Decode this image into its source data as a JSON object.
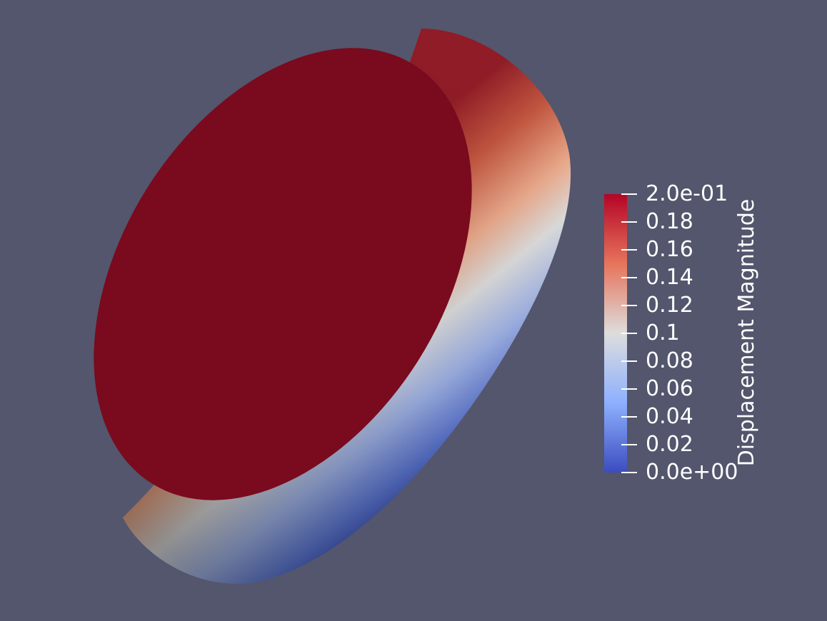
{
  "colors": {
    "background": "#53566c",
    "disk_top": "#7a0a1e",
    "colormap_high": "#b40426",
    "colormap_mid": "#dddddd",
    "colormap_low": "#3b4cc0",
    "legend_text": "#ffffff"
  },
  "colormap": {
    "name": "Cool to Warm",
    "range": [
      0,
      0.2
    ]
  },
  "legend": {
    "title": "Displacement Magnitude",
    "ticks": [
      {
        "value": 0.2,
        "label": "2.0e-01"
      },
      {
        "value": 0.18,
        "label": "0.18"
      },
      {
        "value": 0.16,
        "label": "0.16"
      },
      {
        "value": 0.14,
        "label": "0.14"
      },
      {
        "value": 0.12,
        "label": "0.12"
      },
      {
        "value": 0.1,
        "label": "0.1"
      },
      {
        "value": 0.08,
        "label": "0.08"
      },
      {
        "value": 0.06,
        "label": "0.06"
      },
      {
        "value": 0.04,
        "label": "0.04"
      },
      {
        "value": 0.02,
        "label": "0.02"
      },
      {
        "value": 0,
        "label": "0.0e+00"
      }
    ]
  }
}
